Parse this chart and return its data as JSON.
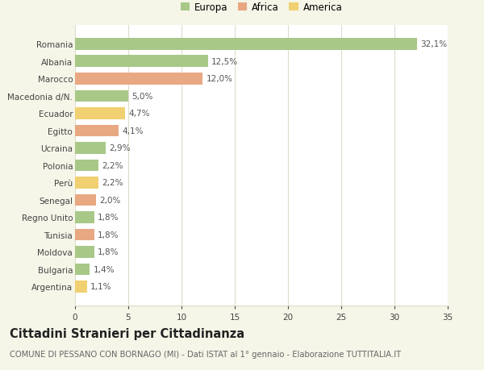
{
  "countries": [
    "Romania",
    "Albania",
    "Marocco",
    "Macedonia d/N.",
    "Ecuador",
    "Egitto",
    "Ucraina",
    "Polonia",
    "Perù",
    "Senegal",
    "Regno Unito",
    "Tunisia",
    "Moldova",
    "Bulgaria",
    "Argentina"
  ],
  "values": [
    32.1,
    12.5,
    12.0,
    5.0,
    4.7,
    4.1,
    2.9,
    2.2,
    2.2,
    2.0,
    1.8,
    1.8,
    1.8,
    1.4,
    1.1
  ],
  "labels": [
    "32,1%",
    "12,5%",
    "12,0%",
    "5,0%",
    "4,7%",
    "4,1%",
    "2,9%",
    "2,2%",
    "2,2%",
    "2,0%",
    "1,8%",
    "1,8%",
    "1,8%",
    "1,4%",
    "1,1%"
  ],
  "continents": [
    "Europa",
    "Europa",
    "Africa",
    "Europa",
    "America",
    "Africa",
    "Europa",
    "Europa",
    "America",
    "Africa",
    "Europa",
    "Africa",
    "Europa",
    "Europa",
    "America"
  ],
  "colors": {
    "Europa": "#a8c888",
    "Africa": "#e8a882",
    "America": "#f0d070"
  },
  "bg_color": "#f5f5e8",
  "plot_bg_color": "#ffffff",
  "title": "Cittadini Stranieri per Cittadinanza",
  "subtitle": "COMUNE DI PESSANO CON BORNAGO (MI) - Dati ISTAT al 1° gennaio - Elaborazione TUTTITALIA.IT",
  "xlim": [
    0,
    35
  ],
  "xticks": [
    0,
    5,
    10,
    15,
    20,
    25,
    30,
    35
  ],
  "grid_color": "#ddddcc",
  "bar_height": 0.68,
  "label_fontsize": 7.5,
  "tick_fontsize": 7.5,
  "title_fontsize": 10.5,
  "subtitle_fontsize": 7.2,
  "legend_fontsize": 8.5
}
